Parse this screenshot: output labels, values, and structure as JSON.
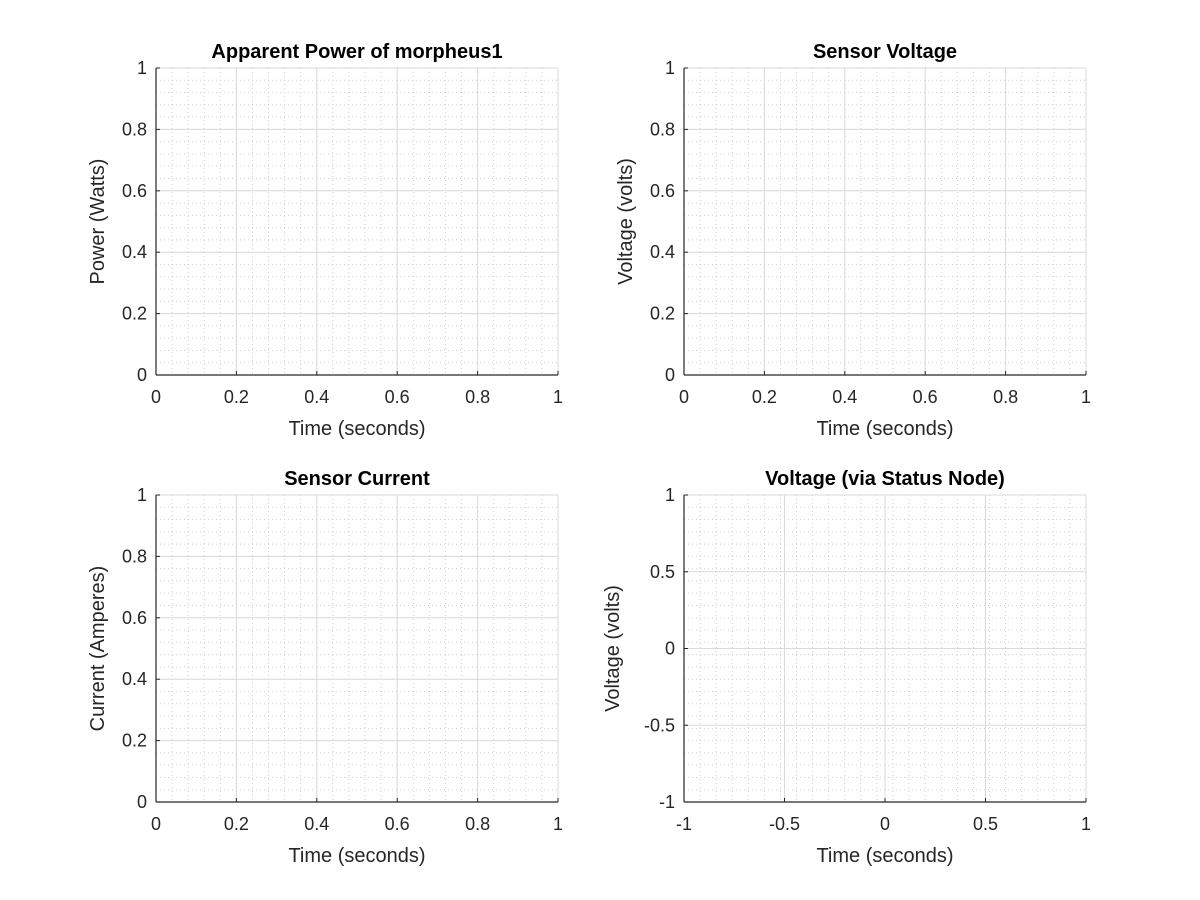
{
  "chart_data": [
    {
      "type": "line",
      "title": "Apparent Power of morpheus1",
      "xlabel": "Time (seconds)",
      "ylabel": "Power (Watts)",
      "xlim": [
        0,
        1
      ],
      "ylim": [
        0,
        1
      ],
      "xticks": [
        "0",
        "0.2",
        "0.4",
        "0.6",
        "0.8",
        "1"
      ],
      "yticks": [
        "0",
        "0.2",
        "0.4",
        "0.6",
        "0.8",
        "1"
      ],
      "grid": true,
      "minor_grid": true,
      "series": []
    },
    {
      "type": "line",
      "title": "Sensor Voltage",
      "xlabel": "Time (seconds)",
      "ylabel": "Voltage (volts)",
      "xlim": [
        0,
        1
      ],
      "ylim": [
        0,
        1
      ],
      "xticks": [
        "0",
        "0.2",
        "0.4",
        "0.6",
        "0.8",
        "1"
      ],
      "yticks": [
        "0",
        "0.2",
        "0.4",
        "0.6",
        "0.8",
        "1"
      ],
      "grid": true,
      "minor_grid": true,
      "series": []
    },
    {
      "type": "line",
      "title": "Sensor Current",
      "xlabel": "Time (seconds)",
      "ylabel": "Current (Amperes)",
      "xlim": [
        0,
        1
      ],
      "ylim": [
        0,
        1
      ],
      "xticks": [
        "0",
        "0.2",
        "0.4",
        "0.6",
        "0.8",
        "1"
      ],
      "yticks": [
        "0",
        "0.2",
        "0.4",
        "0.6",
        "0.8",
        "1"
      ],
      "grid": true,
      "minor_grid": true,
      "series": []
    },
    {
      "type": "line",
      "title": "Voltage (via Status Node)",
      "xlabel": "Time (seconds)",
      "ylabel": "Voltage (volts)",
      "xlim": [
        -1,
        1
      ],
      "ylim": [
        -1,
        1
      ],
      "xticks": [
        "-1",
        "-0.5",
        "0",
        "0.5",
        "1"
      ],
      "yticks": [
        "-1",
        "-0.5",
        "0",
        "0.5",
        "1"
      ],
      "grid": true,
      "minor_grid": true,
      "series": []
    }
  ],
  "colors": {
    "axis": "#262626",
    "major_grid": "#dadada",
    "minor_grid": "#cfcfcf"
  }
}
